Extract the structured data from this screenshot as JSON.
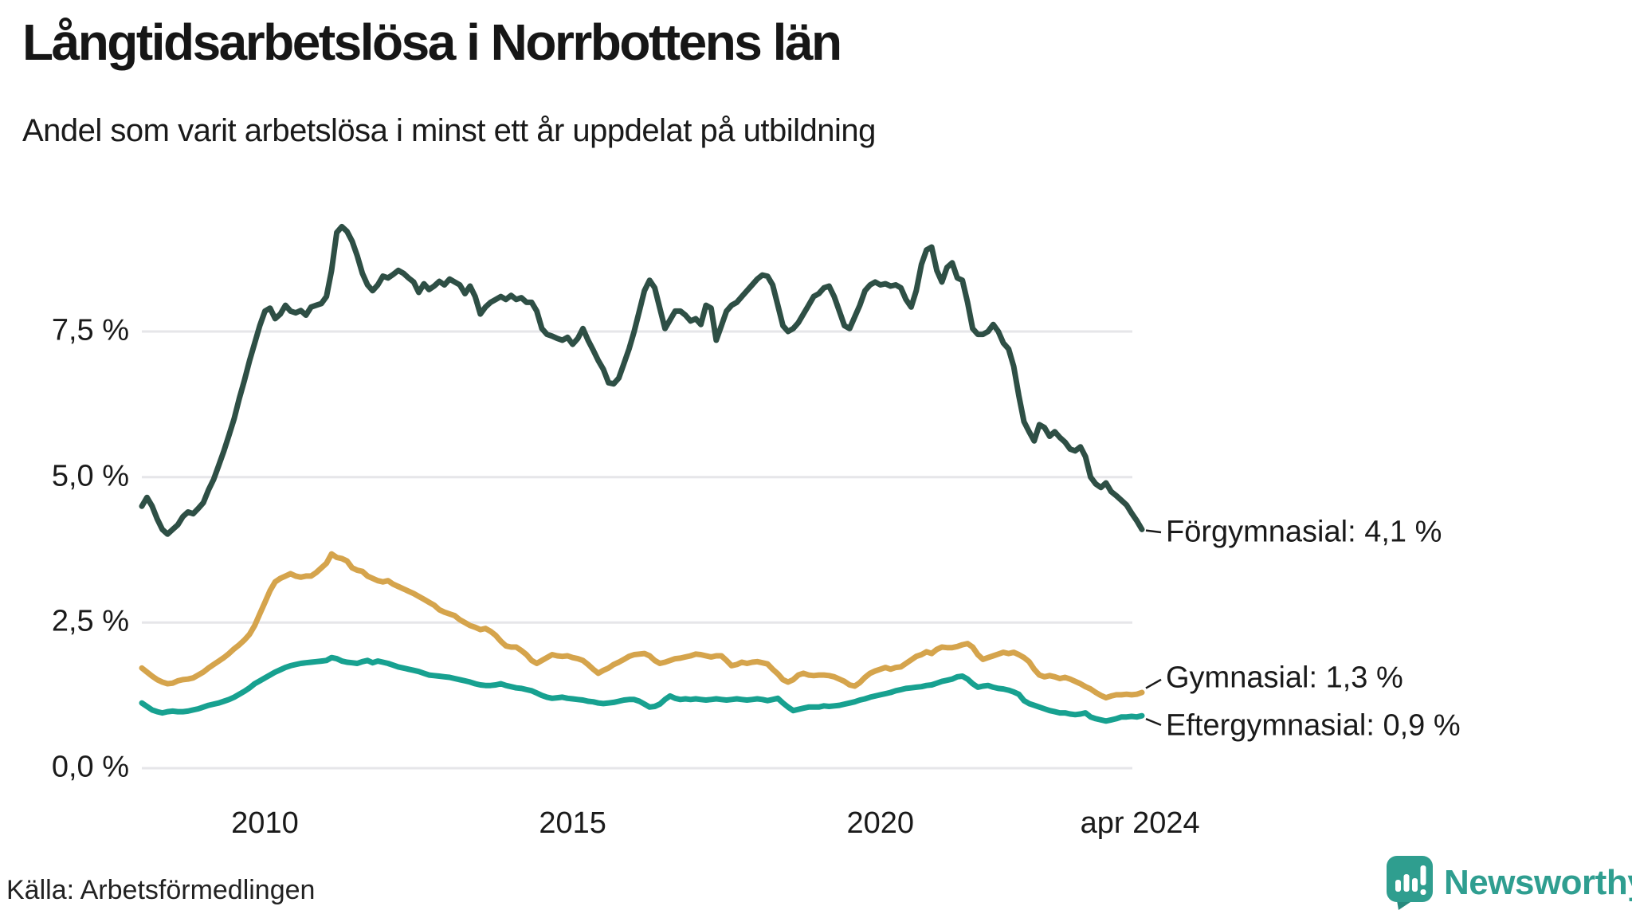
{
  "header": {
    "title": "Långtidsarbetslösa i Norrbottens län",
    "subtitle": "Andel som varit arbetslösa i minst ett år uppdelat på utbildning"
  },
  "source": {
    "label": "Källa: Arbetsförmedlingen"
  },
  "logo": {
    "text": "Newsworthy",
    "color": "#2f9e90",
    "icon": "speech-bubble-bar-chart-exclamation",
    "icon_color": "#2f9e8f",
    "icon_tail_color": "#27897d",
    "icon_bar_color": "#ffffff"
  },
  "colors": {
    "text": "#1a1a1a",
    "gridline": "#e6e6e9",
    "connector": "#1a1a1a",
    "background": "#ffffff"
  },
  "chart_data": {
    "type": "line",
    "title": "Långtidsarbetslösa i Norrbottens län",
    "subtitle": "Andel som varit arbetslösa i minst ett år uppdelat på utbildning",
    "xlabel": "",
    "ylabel": "",
    "grid": "horizontal-only",
    "legend_position": "end-labels-right",
    "gridline_color": "#e6e6e9",
    "x_axis": {
      "start": 2008,
      "step_months": 1,
      "range": [
        2008,
        2024.25
      ],
      "ticks": [
        {
          "label": "2010",
          "x": 2010
        },
        {
          "label": "2015",
          "x": 2015
        },
        {
          "label": "2020",
          "x": 2020
        },
        {
          "label": "apr 2024",
          "x": 2024.22
        }
      ]
    },
    "y_axis": {
      "range": [
        0,
        10.05
      ],
      "unit": "%",
      "ticks": [
        {
          "label": "0,0 %",
          "value": 0
        },
        {
          "label": "2,5 %",
          "value": 2.5
        },
        {
          "label": "5,0 %",
          "value": 5
        },
        {
          "label": "7,5 %",
          "value": 7.5
        }
      ]
    },
    "series": [
      {
        "id": "forgymnasial",
        "name": "Förgymnasial",
        "color": "#2e4f45",
        "end_label": "Förgymnasial: 4,1 %",
        "end_value": "4,1 %",
        "label_offset_y": 4,
        "values": [
          4.5,
          4.65,
          4.5,
          4.28,
          4.1,
          4.02,
          4.1,
          4.18,
          4.32,
          4.4,
          4.37,
          4.46,
          4.56,
          4.78,
          4.96,
          5.2,
          5.45,
          5.72,
          6.0,
          6.35,
          6.66,
          7.0,
          7.3,
          7.6,
          7.85,
          7.9,
          7.72,
          7.8,
          7.95,
          7.85,
          7.82,
          7.86,
          7.78,
          7.92,
          7.95,
          7.98,
          8.1,
          8.55,
          9.2,
          9.3,
          9.22,
          9.05,
          8.8,
          8.5,
          8.3,
          8.2,
          8.3,
          8.45,
          8.42,
          8.48,
          8.55,
          8.5,
          8.42,
          8.35,
          8.17,
          8.32,
          8.22,
          8.28,
          8.36,
          8.3,
          8.4,
          8.35,
          8.3,
          8.15,
          8.28,
          8.1,
          7.8,
          7.92,
          8.0,
          8.05,
          8.1,
          8.05,
          8.12,
          8.05,
          8.08,
          8.0,
          8.0,
          7.85,
          7.55,
          7.45,
          7.42,
          7.38,
          7.35,
          7.4,
          7.28,
          7.38,
          7.55,
          7.35,
          7.18,
          7.0,
          6.85,
          6.62,
          6.6,
          6.7,
          6.95,
          7.2,
          7.5,
          7.85,
          8.2,
          8.38,
          8.25,
          7.9,
          7.55,
          7.7,
          7.85,
          7.85,
          7.78,
          7.68,
          7.72,
          7.62,
          7.95,
          7.9,
          7.35,
          7.6,
          7.85,
          7.95,
          8.0,
          8.1,
          8.2,
          8.3,
          8.4,
          8.47,
          8.45,
          8.3,
          7.95,
          7.6,
          7.5,
          7.55,
          7.65,
          7.8,
          7.95,
          8.1,
          8.15,
          8.25,
          8.28,
          8.1,
          7.85,
          7.6,
          7.55,
          7.75,
          7.95,
          8.2,
          8.3,
          8.35,
          8.3,
          8.32,
          8.28,
          8.3,
          8.25,
          8.05,
          7.92,
          8.2,
          8.65,
          8.9,
          8.95,
          8.55,
          8.35,
          8.6,
          8.68,
          8.42,
          8.38,
          8.0,
          7.55,
          7.45,
          7.45,
          7.5,
          7.62,
          7.5,
          7.3,
          7.2,
          6.9,
          6.4,
          5.95,
          5.78,
          5.62,
          5.9,
          5.85,
          5.7,
          5.78,
          5.68,
          5.6,
          5.48,
          5.45,
          5.52,
          5.35,
          5.0,
          4.88,
          4.82,
          4.9,
          4.75,
          4.68,
          4.6,
          4.52,
          4.38,
          4.25,
          4.1
        ]
      },
      {
        "id": "gymnasial",
        "name": "Gymnasial",
        "color": "#d5a44c",
        "end_label": "Gymnasial: 1,3 %",
        "end_value": "1,3 %",
        "label_offset_y": -18,
        "values": [
          1.72,
          1.65,
          1.58,
          1.52,
          1.48,
          1.45,
          1.46,
          1.5,
          1.52,
          1.53,
          1.55,
          1.6,
          1.65,
          1.72,
          1.78,
          1.84,
          1.9,
          1.97,
          2.05,
          2.12,
          2.2,
          2.3,
          2.45,
          2.65,
          2.85,
          3.05,
          3.2,
          3.26,
          3.3,
          3.34,
          3.3,
          3.28,
          3.3,
          3.3,
          3.36,
          3.44,
          3.52,
          3.68,
          3.62,
          3.6,
          3.56,
          3.44,
          3.4,
          3.38,
          3.3,
          3.26,
          3.22,
          3.2,
          3.22,
          3.16,
          3.12,
          3.08,
          3.04,
          3.0,
          2.95,
          2.9,
          2.85,
          2.8,
          2.72,
          2.68,
          2.65,
          2.62,
          2.55,
          2.5,
          2.45,
          2.42,
          2.38,
          2.4,
          2.35,
          2.28,
          2.18,
          2.1,
          2.08,
          2.08,
          2.02,
          1.95,
          1.85,
          1.8,
          1.85,
          1.9,
          1.95,
          1.93,
          1.92,
          1.93,
          1.9,
          1.88,
          1.85,
          1.78,
          1.7,
          1.63,
          1.68,
          1.72,
          1.78,
          1.82,
          1.87,
          1.92,
          1.95,
          1.96,
          1.97,
          1.93,
          1.85,
          1.8,
          1.82,
          1.85,
          1.88,
          1.89,
          1.91,
          1.93,
          1.96,
          1.95,
          1.93,
          1.91,
          1.93,
          1.93,
          1.85,
          1.76,
          1.78,
          1.82,
          1.8,
          1.82,
          1.83,
          1.81,
          1.79,
          1.7,
          1.62,
          1.52,
          1.48,
          1.52,
          1.6,
          1.63,
          1.6,
          1.59,
          1.6,
          1.6,
          1.59,
          1.57,
          1.53,
          1.49,
          1.43,
          1.41,
          1.47,
          1.56,
          1.63,
          1.67,
          1.7,
          1.73,
          1.7,
          1.73,
          1.74,
          1.8,
          1.86,
          1.92,
          1.95,
          2.0,
          1.97,
          2.04,
          2.08,
          2.07,
          2.07,
          2.09,
          2.12,
          2.14,
          2.08,
          1.95,
          1.87,
          1.9,
          1.93,
          1.96,
          1.99,
          1.97,
          1.99,
          1.95,
          1.9,
          1.83,
          1.7,
          1.6,
          1.57,
          1.59,
          1.57,
          1.54,
          1.56,
          1.53,
          1.49,
          1.45,
          1.4,
          1.36,
          1.3,
          1.25,
          1.21,
          1.24,
          1.26,
          1.26,
          1.27,
          1.26,
          1.27,
          1.3
        ]
      },
      {
        "id": "eftergymnasial",
        "name": "Eftergymnasial",
        "color": "#17a190",
        "end_label": "Eftergymnasial: 0,9 %",
        "end_value": "0,9 %",
        "label_offset_y": 13,
        "values": [
          1.12,
          1.06,
          1.0,
          0.97,
          0.95,
          0.97,
          0.98,
          0.97,
          0.97,
          0.98,
          1.0,
          1.02,
          1.05,
          1.08,
          1.1,
          1.12,
          1.15,
          1.18,
          1.22,
          1.27,
          1.32,
          1.38,
          1.45,
          1.5,
          1.55,
          1.6,
          1.65,
          1.69,
          1.73,
          1.76,
          1.78,
          1.8,
          1.81,
          1.82,
          1.83,
          1.84,
          1.85,
          1.9,
          1.88,
          1.84,
          1.82,
          1.81,
          1.8,
          1.83,
          1.85,
          1.81,
          1.84,
          1.82,
          1.8,
          1.77,
          1.74,
          1.72,
          1.7,
          1.68,
          1.66,
          1.63,
          1.6,
          1.59,
          1.58,
          1.57,
          1.56,
          1.54,
          1.52,
          1.5,
          1.48,
          1.45,
          1.43,
          1.42,
          1.42,
          1.43,
          1.45,
          1.42,
          1.4,
          1.38,
          1.37,
          1.35,
          1.33,
          1.29,
          1.25,
          1.22,
          1.2,
          1.21,
          1.22,
          1.2,
          1.19,
          1.18,
          1.17,
          1.15,
          1.14,
          1.12,
          1.11,
          1.12,
          1.13,
          1.15,
          1.17,
          1.18,
          1.18,
          1.15,
          1.1,
          1.05,
          1.06,
          1.1,
          1.18,
          1.24,
          1.2,
          1.18,
          1.19,
          1.18,
          1.19,
          1.18,
          1.17,
          1.18,
          1.19,
          1.18,
          1.17,
          1.18,
          1.19,
          1.18,
          1.17,
          1.18,
          1.19,
          1.18,
          1.16,
          1.18,
          1.2,
          1.12,
          1.05,
          0.99,
          1.01,
          1.03,
          1.05,
          1.05,
          1.05,
          1.07,
          1.06,
          1.07,
          1.08,
          1.1,
          1.12,
          1.14,
          1.17,
          1.19,
          1.22,
          1.24,
          1.26,
          1.28,
          1.3,
          1.33,
          1.35,
          1.37,
          1.38,
          1.39,
          1.4,
          1.42,
          1.43,
          1.46,
          1.49,
          1.51,
          1.53,
          1.57,
          1.58,
          1.53,
          1.45,
          1.39,
          1.41,
          1.42,
          1.39,
          1.37,
          1.36,
          1.34,
          1.31,
          1.27,
          1.16,
          1.11,
          1.08,
          1.05,
          1.02,
          0.99,
          0.97,
          0.95,
          0.95,
          0.93,
          0.92,
          0.93,
          0.95,
          0.88,
          0.85,
          0.83,
          0.81,
          0.83,
          0.85,
          0.88,
          0.88,
          0.89,
          0.88,
          0.9
        ]
      }
    ]
  }
}
